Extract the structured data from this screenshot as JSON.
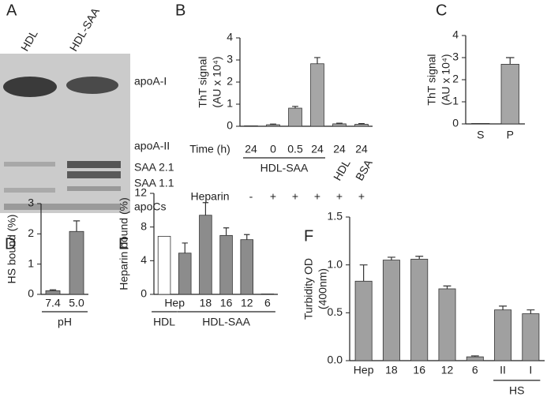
{
  "gel": {
    "panel": "A",
    "lanes": [
      "HDL",
      "HDL-SAA"
    ],
    "bands": [
      "apoA-I",
      "apoA-II",
      "SAA 2.1",
      "SAA 1.1",
      "apoCs"
    ]
  },
  "chart_data": [
    {
      "type": "bar",
      "panel": "B",
      "ylabel": [
        "ThT signal",
        "(AU x 10⁴)"
      ],
      "row_label": "Time (h)",
      "categories": [
        "24",
        "0",
        "0.5",
        "24",
        "24",
        "24"
      ],
      "values": [
        0.02,
        0.07,
        0.82,
        2.83,
        0.11,
        0.09
      ],
      "errors": [
        0,
        0.03,
        0.08,
        0.28,
        0.03,
        0.03
      ],
      "groups": [
        "HDL-SAA",
        "HDL",
        "BSA"
      ],
      "heparin_label": "Heparin",
      "heparin": [
        "-",
        "+",
        "+",
        "+",
        "+",
        "+"
      ],
      "color": "#a6a6a6",
      "ylim": [
        0,
        4
      ],
      "yticks": [
        0,
        1,
        2,
        3,
        4
      ]
    },
    {
      "type": "bar",
      "panel": "C",
      "ylabel": [
        "ThT signal",
        "(AU x 10⁴)"
      ],
      "categories": [
        "S",
        "P"
      ],
      "values": [
        0.02,
        2.7
      ],
      "errors": [
        0,
        0.3
      ],
      "color": "#a6a6a6",
      "ylim": [
        0,
        4
      ],
      "yticks": [
        0,
        1,
        2,
        3,
        4
      ]
    },
    {
      "type": "bar",
      "panel": "D",
      "ylabel": [
        "HS bound (%)"
      ],
      "xlabel": "pH",
      "categories": [
        "7.4",
        "5.0"
      ],
      "values": [
        0.12,
        2.08
      ],
      "errors": [
        0.03,
        0.35
      ],
      "color": "#8c8c8c",
      "ylim": [
        0,
        3
      ],
      "yticks": [
        0,
        1,
        2,
        3
      ]
    },
    {
      "type": "bar",
      "panel": "E",
      "ylabel": [
        "Heparin bound (%)"
      ],
      "categories": [
        "Hep",
        null,
        "18",
        "16",
        "12",
        "6"
      ],
      "values": [
        6.9,
        4.9,
        9.4,
        7.0,
        6.5,
        0.05
      ],
      "errors": [
        0,
        1.2,
        1.5,
        0.9,
        0.6,
        0
      ],
      "groups": [
        "HDL",
        "HDL-SAA"
      ],
      "colors": [
        "#ffffff",
        "#8c8c8c",
        "#8c8c8c",
        "#8c8c8c",
        "#8c8c8c",
        "#8c8c8c"
      ],
      "ylim": [
        0,
        12
      ],
      "yticks": [
        0,
        4,
        8,
        12
      ]
    },
    {
      "type": "bar",
      "panel": "F",
      "ylabel": [
        "Turbidity OD",
        "(400nm)"
      ],
      "categories": [
        "Hep",
        "18",
        "16",
        "12",
        "6",
        "II",
        "I"
      ],
      "values": [
        0.83,
        1.05,
        1.06,
        0.75,
        0.04,
        0.53,
        0.49
      ],
      "errors": [
        0.17,
        0.03,
        0.03,
        0.03,
        0.01,
        0.04,
        0.04
      ],
      "groups": [
        "HS"
      ],
      "color": "#a0a0a0",
      "ylim": [
        0,
        1.5
      ],
      "yticks": [
        {
          "value": 0,
          "label": "0.0"
        },
        {
          "value": 0.5,
          "label": "0.5"
        },
        {
          "value": 1,
          "label": "1.0"
        },
        {
          "value": 1.5,
          "label": "1.5"
        }
      ]
    }
  ]
}
